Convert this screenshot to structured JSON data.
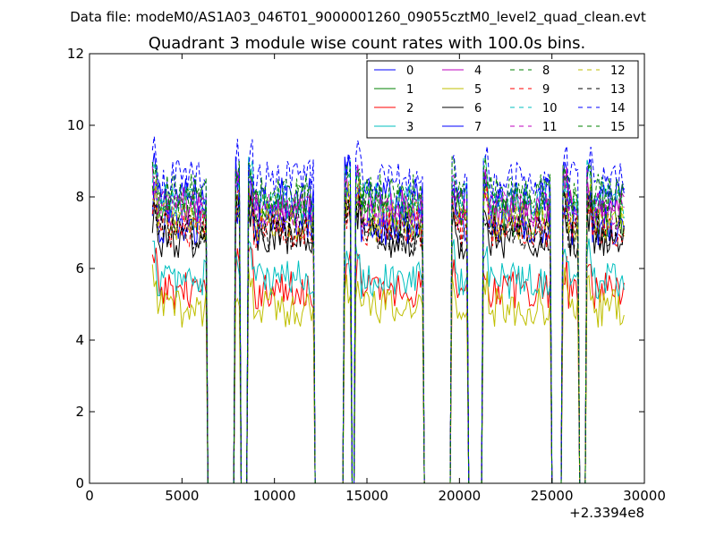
{
  "suptitle": "Data file: modeM0/AS1A03_046T01_9000001260_09055cztM0_level2_quad_clean.evt",
  "chart_data": {
    "type": "line",
    "title": "Quadrant 3 module wise count rates with 100.0s bins.",
    "xlabel": "",
    "ylabel": "",
    "xlim": [
      0,
      30000
    ],
    "ylim": [
      0,
      12
    ],
    "x_offset_label": "+2.3394e8",
    "xticks": [
      0,
      5000,
      10000,
      15000,
      20000,
      25000,
      30000
    ],
    "yticks": [
      0,
      2,
      4,
      6,
      8,
      10,
      12
    ],
    "legend_location": "upper-right",
    "legend_columns": 4,
    "grid": false,
    "observation_windows": [
      [
        3400,
        6300
      ],
      [
        7900,
        8150
      ],
      [
        8600,
        12100
      ],
      [
        13800,
        14150
      ],
      [
        14400,
        18000
      ],
      [
        19600,
        20400
      ],
      [
        21300,
        24900
      ],
      [
        25600,
        26400
      ],
      [
        26900,
        28900
      ]
    ],
    "series": [
      {
        "name": "0",
        "color": "#0000ff",
        "dash": "solid",
        "level": 8.0
      },
      {
        "name": "1",
        "color": "#008000",
        "dash": "solid",
        "level": 7.4
      },
      {
        "name": "2",
        "color": "#ff0000",
        "dash": "solid",
        "level": 5.4
      },
      {
        "name": "3",
        "color": "#00bfbf",
        "dash": "solid",
        "level": 5.7
      },
      {
        "name": "4",
        "color": "#bf00bf",
        "dash": "solid",
        "level": 7.7
      },
      {
        "name": "5",
        "color": "#bfbf00",
        "dash": "solid",
        "level": 4.9
      },
      {
        "name": "6",
        "color": "#000000",
        "dash": "solid",
        "level": 6.8
      },
      {
        "name": "7",
        "color": "#0000ff",
        "dash": "solid",
        "level": 7.2
      },
      {
        "name": "8",
        "color": "#008000",
        "dash": "dashed",
        "level": 7.8
      },
      {
        "name": "9",
        "color": "#ff0000",
        "dash": "dashed",
        "level": 7.1
      },
      {
        "name": "10",
        "color": "#00bfbf",
        "dash": "dashed",
        "level": 7.9
      },
      {
        "name": "11",
        "color": "#bf00bf",
        "dash": "dashed",
        "level": 7.6
      },
      {
        "name": "12",
        "color": "#bfbf00",
        "dash": "dashed",
        "level": 7.3
      },
      {
        "name": "13",
        "color": "#000000",
        "dash": "dashed",
        "level": 7.0
      },
      {
        "name": "14",
        "color": "#0000ff",
        "dash": "dashed",
        "level": 8.5
      },
      {
        "name": "15",
        "color": "#008000",
        "dash": "dashed",
        "level": 8.1
      }
    ]
  }
}
